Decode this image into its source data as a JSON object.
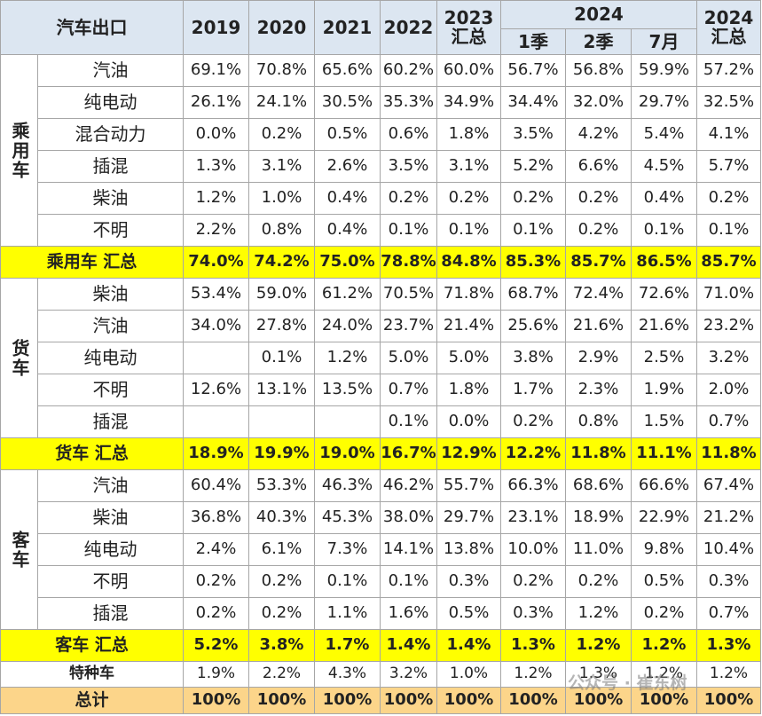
{
  "header": {
    "title": "汽车出口",
    "years": [
      "2019",
      "2020",
      "2021",
      "2022"
    ],
    "y2023": [
      "2023",
      "汇总"
    ],
    "y2024": "2024",
    "periods": [
      "1季",
      "2季",
      "7月"
    ],
    "y2024sum": [
      "2024",
      "汇总"
    ]
  },
  "groups": [
    {
      "name": "乘用车",
      "rows": [
        {
          "label": "汽油",
          "values": [
            "69.1%",
            "70.8%",
            "65.6%",
            "60.2%",
            "60.0%",
            "56.7%",
            "56.8%",
            "59.9%",
            "57.2%"
          ]
        },
        {
          "label": "纯电动",
          "values": [
            "26.1%",
            "24.1%",
            "30.5%",
            "35.3%",
            "34.9%",
            "34.4%",
            "32.0%",
            "29.7%",
            "32.5%"
          ]
        },
        {
          "label": "混合动力",
          "values": [
            "0.0%",
            "0.2%",
            "0.5%",
            "0.6%",
            "1.8%",
            "3.5%",
            "4.2%",
            "5.4%",
            "4.1%"
          ]
        },
        {
          "label": "插混",
          "values": [
            "1.3%",
            "3.1%",
            "2.6%",
            "3.5%",
            "3.1%",
            "5.2%",
            "6.6%",
            "4.5%",
            "5.7%"
          ]
        },
        {
          "label": "柴油",
          "values": [
            "1.2%",
            "1.0%",
            "0.4%",
            "0.2%",
            "0.2%",
            "0.2%",
            "0.2%",
            "0.4%",
            "0.2%"
          ]
        },
        {
          "label": "不明",
          "values": [
            "2.2%",
            "0.8%",
            "0.4%",
            "0.1%",
            "0.1%",
            "0.1%",
            "0.2%",
            "0.1%",
            "0.1%"
          ]
        }
      ],
      "total": {
        "label": "乘用车 汇总",
        "values": [
          "74.0%",
          "74.2%",
          "75.0%",
          "78.8%",
          "84.8%",
          "85.3%",
          "85.7%",
          "86.5%",
          "85.7%"
        ]
      }
    },
    {
      "name": "货车",
      "rows": [
        {
          "label": "柴油",
          "values": [
            "53.4%",
            "59.0%",
            "61.2%",
            "70.5%",
            "71.8%",
            "68.7%",
            "72.4%",
            "72.6%",
            "71.0%"
          ]
        },
        {
          "label": "汽油",
          "values": [
            "34.0%",
            "27.8%",
            "24.0%",
            "23.7%",
            "21.4%",
            "25.6%",
            "21.6%",
            "21.6%",
            "23.2%"
          ]
        },
        {
          "label": "纯电动",
          "values": [
            null,
            "0.1%",
            "1.2%",
            "5.0%",
            "5.0%",
            "3.8%",
            "2.9%",
            "2.5%",
            "3.2%"
          ]
        },
        {
          "label": "不明",
          "values": [
            "12.6%",
            "13.1%",
            "13.5%",
            "0.7%",
            "1.8%",
            "1.7%",
            "2.3%",
            "1.9%",
            "2.0%"
          ]
        },
        {
          "label": "插混",
          "values": [
            null,
            null,
            null,
            "0.1%",
            "0.0%",
            "0.2%",
            "0.8%",
            "1.5%",
            "0.7%"
          ]
        }
      ],
      "total": {
        "label": "货车 汇总",
        "values": [
          "18.9%",
          "19.9%",
          "19.0%",
          "16.7%",
          "12.9%",
          "12.2%",
          "11.8%",
          "11.1%",
          "11.8%"
        ]
      }
    },
    {
      "name": "客车",
      "rows": [
        {
          "label": "汽油",
          "values": [
            "60.4%",
            "53.3%",
            "46.3%",
            "46.2%",
            "55.7%",
            "66.3%",
            "68.6%",
            "66.6%",
            "67.4%"
          ]
        },
        {
          "label": "柴油",
          "values": [
            "36.8%",
            "40.3%",
            "45.3%",
            "38.0%",
            "29.7%",
            "23.1%",
            "18.9%",
            "22.9%",
            "21.2%"
          ]
        },
        {
          "label": "纯电动",
          "values": [
            "2.4%",
            "6.1%",
            "7.3%",
            "14.1%",
            "13.8%",
            "10.0%",
            "11.0%",
            "9.8%",
            "10.4%"
          ]
        },
        {
          "label": "不明",
          "values": [
            "0.2%",
            "0.2%",
            "0.1%",
            "0.1%",
            "0.3%",
            "0.2%",
            "0.2%",
            "0.5%",
            "0.3%"
          ]
        },
        {
          "label": "插混",
          "values": [
            "0.2%",
            "0.2%",
            "1.1%",
            "1.6%",
            "0.5%",
            "0.3%",
            "1.2%",
            "0.2%",
            "0.7%"
          ]
        }
      ],
      "total": {
        "label": "客车 汇总",
        "values": [
          "5.2%",
          "3.8%",
          "1.7%",
          "1.4%",
          "1.4%",
          "1.3%",
          "1.2%",
          "1.2%",
          "1.3%"
        ]
      }
    }
  ],
  "special": {
    "label": "特种车",
    "values": [
      "1.9%",
      "2.2%",
      "4.3%",
      "3.2%",
      "1.0%",
      "1.2%",
      "1.3%",
      "1.2%",
      "1.2%"
    ]
  },
  "grand_total": {
    "label": "总计",
    "values": [
      "100%",
      "100%",
      "100%",
      "100%",
      "100%",
      "100%",
      "100%",
      "100%",
      "100%"
    ]
  },
  "watermark": "公众号 · 崔东树"
}
